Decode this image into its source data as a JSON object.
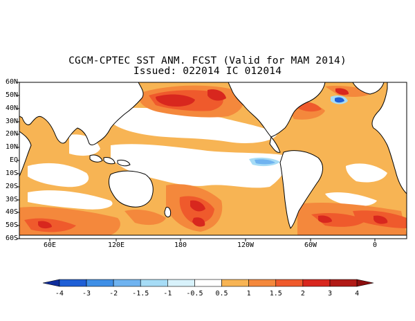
{
  "title": {
    "line1": "CGCM-CPTEC SST ANM. FCST  (Valid for MAM 2014)",
    "line2": "Issued:  022014 IC 012014"
  },
  "map": {
    "lat_labels": [
      "60N",
      "50N",
      "40N",
      "30N",
      "20N",
      "10N",
      "EQ",
      "10S",
      "20S",
      "30S",
      "40S",
      "50S",
      "60S"
    ],
    "lon_labels": [
      "60E",
      "120E",
      "180",
      "120W",
      "60W",
      "0"
    ]
  },
  "colorbar": {
    "labels": [
      "-4",
      "-3",
      "-2",
      "-1.5",
      "-1",
      "-0.5",
      "0.5",
      "1",
      "1.5",
      "2",
      "3",
      "4"
    ],
    "colors": [
      "#0f2d9c",
      "#1f5fd6",
      "#3f8fe6",
      "#6fb3f0",
      "#a6dcf6",
      "#d8f2fb",
      "#ffffff",
      "#f7b454",
      "#f4883c",
      "#ef5a2c",
      "#d8271e",
      "#b11a16",
      "#8b0d0d"
    ]
  },
  "colors": {
    "land": "#ffffff",
    "coast": "#000000",
    "warm_light": "#f7b454",
    "warm_mid": "#f4883c",
    "warm_strong": "#ef5a2c",
    "warm_hot": "#d8271e",
    "warm_max": "#b11a16",
    "cool_light": "#a6dcf6",
    "cool_mid": "#6fb3f0",
    "cool_strong": "#1f5fd6"
  }
}
